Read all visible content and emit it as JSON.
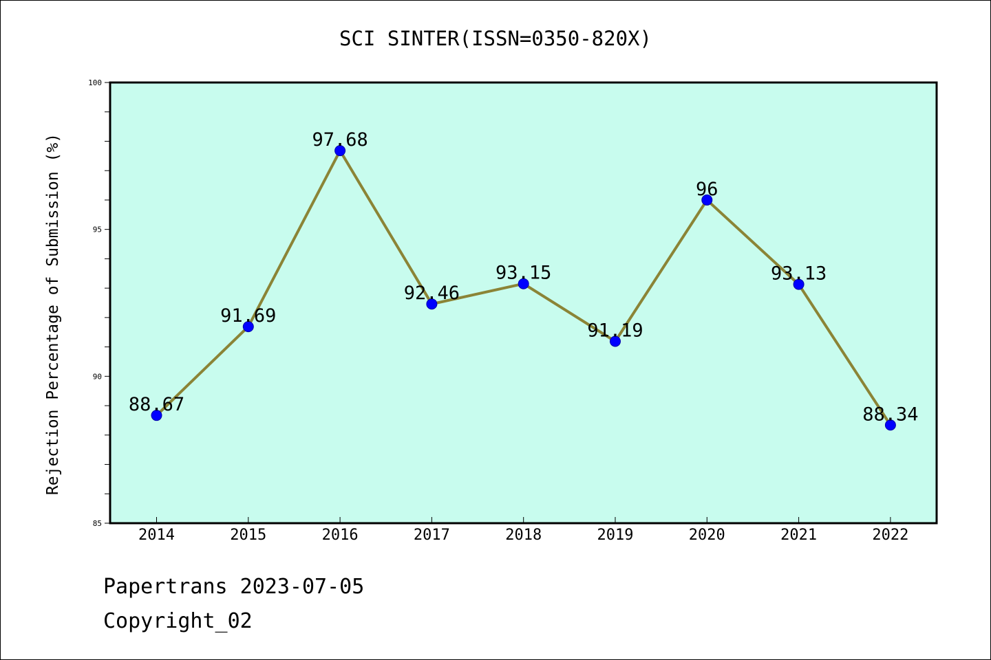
{
  "chart_data": {
    "type": "line",
    "title": "SCI SINTER(ISSN=0350-820X)",
    "xlabel": "",
    "ylabel": "Rejection Percentage of Submission (%)",
    "categories": [
      "2014",
      "2015",
      "2016",
      "2017",
      "2018",
      "2019",
      "2020",
      "2021",
      "2022"
    ],
    "series": [
      {
        "values": [
          88.67,
          91.69,
          97.68,
          92.46,
          93.15,
          91.19,
          96,
          93.13,
          88.34
        ],
        "labels": [
          "88.67",
          "91.69",
          "97.68",
          "92.46",
          "93.15",
          "91.19",
          "96",
          "93.13",
          "88.34"
        ]
      }
    ],
    "ylim": [
      85,
      100
    ],
    "yticks": [
      "85",
      "90",
      "95",
      "100"
    ],
    "grid": false,
    "legend": "none",
    "colors": {
      "plot_background": "#c8fcee",
      "line": "#8b8436",
      "marker": "#0000ff"
    }
  },
  "footer": {
    "line1": "Papertrans 2023-07-05",
    "line2": "Copyright_02"
  }
}
